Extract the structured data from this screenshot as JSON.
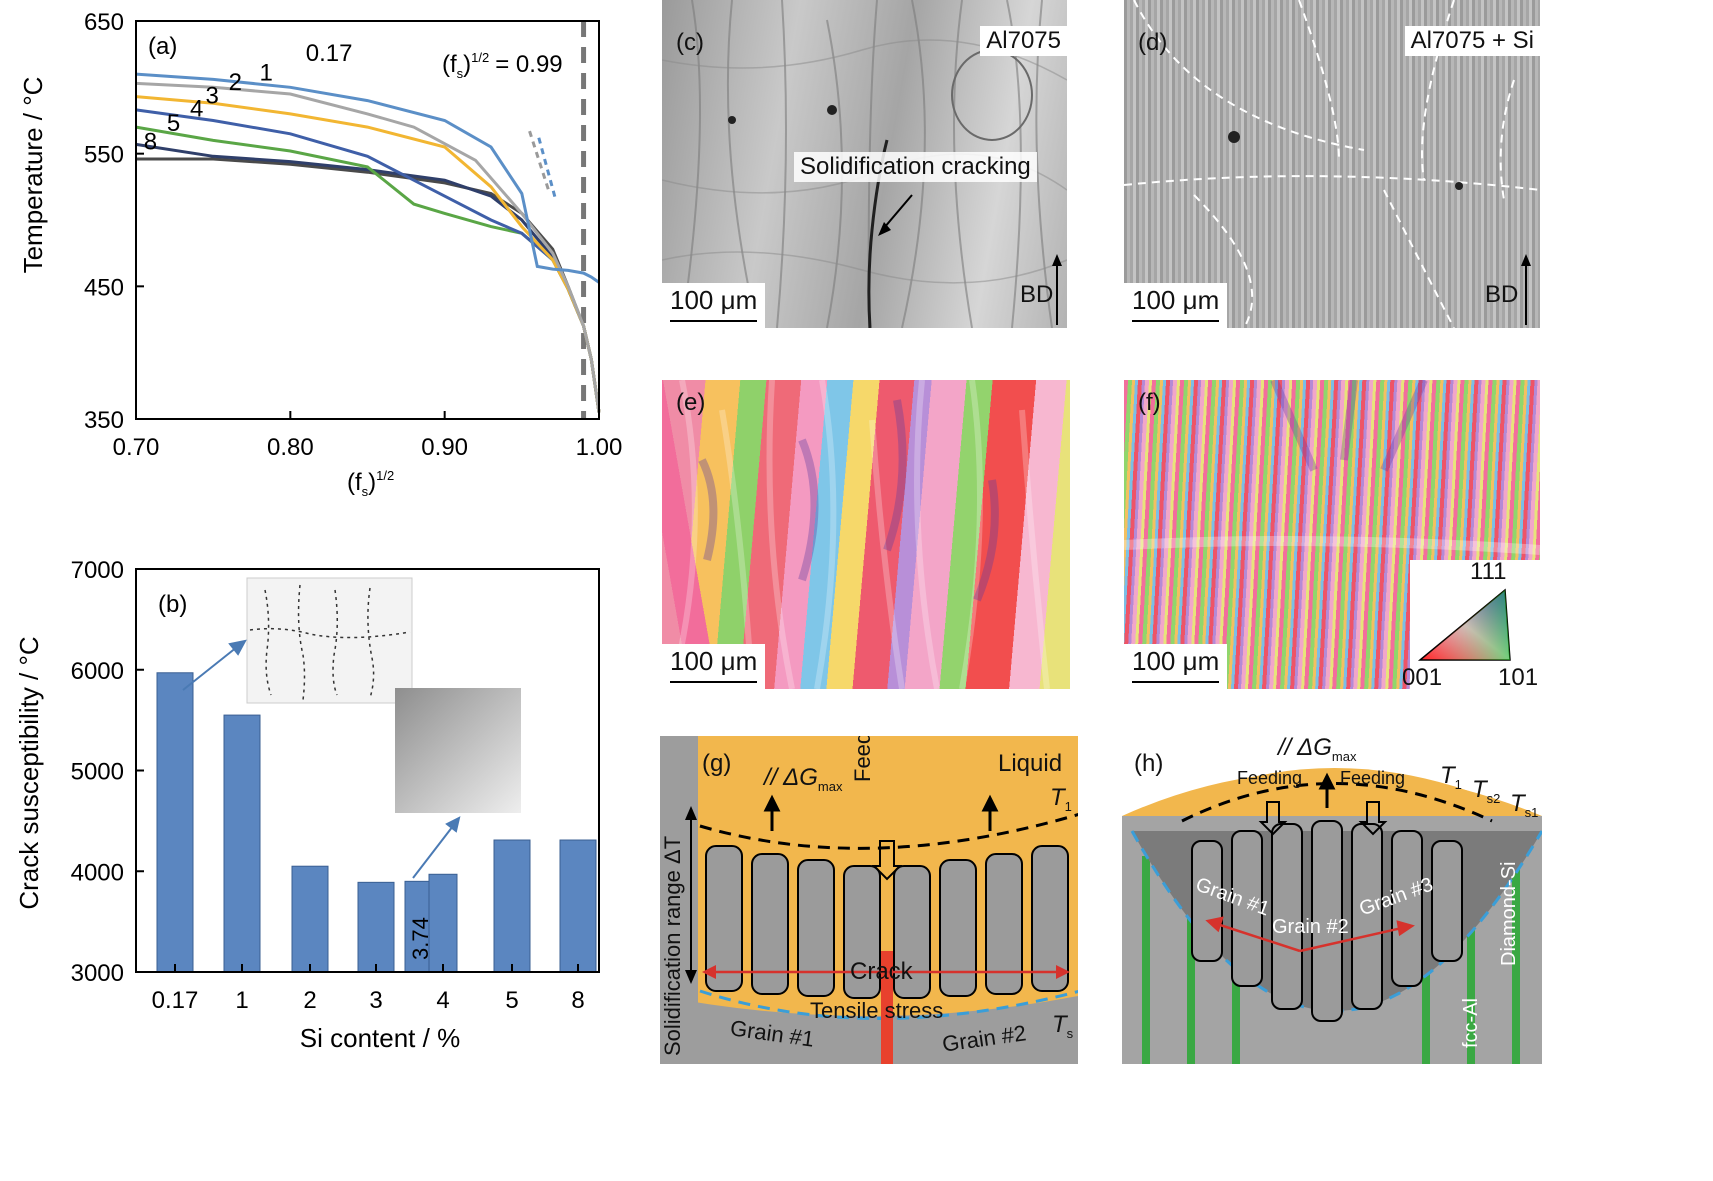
{
  "panel_a": {
    "label": "(a)",
    "ylabel": "Temperature / °C",
    "xlabel_main": "(f",
    "xlabel_sub": "s",
    "xlabel_sup": ")",
    "xlabel_exp": "1/2",
    "annotation_main": "(f",
    "annotation_sub": "s",
    "annotation_tail": ")",
    "annotation_exp": "1/2",
    "annotation_value": "= 0.99",
    "y_ticks": [
      "650",
      "550",
      "450",
      "350"
    ],
    "x_ticks": [
      "0.70",
      "0.80",
      "0.90",
      "1.00"
    ],
    "curve_labels": [
      "0.17",
      "1",
      "2",
      "3",
      "4",
      "5",
      "8"
    ]
  },
  "panel_b": {
    "label": "(b)",
    "ylabel": "Crack susceptibility / °C",
    "xlabel": "Si content / %",
    "y_ticks": [
      "7000",
      "6000",
      "5000",
      "4000",
      "3000"
    ],
    "bar_annotation": "3.74"
  },
  "panel_c": {
    "label": "(c)",
    "title": "Al7075",
    "annotation": "Solidification cracking",
    "scale": "100 μm",
    "bd": "BD"
  },
  "panel_d": {
    "label": "(d)",
    "title": "Al7075 + Si",
    "scale": "100 μm",
    "bd": "BD"
  },
  "panel_e": {
    "label": "(e)",
    "scale": "100 μm"
  },
  "panel_f": {
    "label": "(f)",
    "scale": "100 μm",
    "ipf_top": "111",
    "ipf_left": "001",
    "ipf_right": "101"
  },
  "panel_g": {
    "label": "(g)",
    "liquid": "Liquid",
    "feeding": "Feeding",
    "gmax": "// ΔG",
    "gmax_sub": "max",
    "t1": "T",
    "t1_sub": "1",
    "ts": "T",
    "ts_sub": "s",
    "range": "Solidification range ΔT",
    "crack": "Crack",
    "tensile": "Tensile stress",
    "grain1": "Grain #1",
    "grain2": "Grain #2"
  },
  "panel_h": {
    "label": "(h)",
    "gmax": "// ΔG",
    "gmax_sub": "max",
    "feeding_left": "Feeding",
    "feeding_right": "Feeding",
    "t1": "T",
    "t1_sub": "1",
    "ts2": "T",
    "ts2_sub": "s2",
    "ts1": "T",
    "ts1_sub": "s1",
    "grain1": "Grain #1",
    "grain2": "Grain #2",
    "grain3": "Grain #3",
    "fcc": "fcc-Al",
    "diamond": "Diamond-Si"
  },
  "chart_data": [
    {
      "type": "line",
      "panel": "(a)",
      "ylabel": "Temperature / °C",
      "xlabel": "(fs)^1/2",
      "xlim": [
        0.7,
        1.0
      ],
      "ylim": [
        350,
        650
      ],
      "x_ticks": [
        0.7,
        0.8,
        0.9,
        1.0
      ],
      "y_ticks": [
        350,
        450,
        550,
        650
      ],
      "reference_line_x": 0.99,
      "colors": {
        "0.17": "#5b8fc7",
        "1": "#a6a6a6",
        "2": "#f2b632",
        "3": "#3f5fa8",
        "4": "#5aa646",
        "5": "#2f3f6a",
        "8": "#4a4a4a"
      },
      "series": [
        {
          "name": "0.17",
          "x": [
            0.7,
            0.75,
            0.8,
            0.85,
            0.9,
            0.93,
            0.95,
            0.96,
            0.97,
            0.98,
            0.99,
            0.995,
            1.0
          ],
          "y": [
            610,
            606,
            600,
            590,
            575,
            555,
            520,
            465,
            463,
            462,
            460,
            457,
            453
          ]
        },
        {
          "name": "1",
          "x": [
            0.7,
            0.75,
            0.8,
            0.85,
            0.88,
            0.92,
            0.95,
            0.97,
            0.98,
            0.99,
            0.995,
            1.0
          ],
          "y": [
            603,
            600,
            595,
            580,
            570,
            545,
            505,
            475,
            450,
            420,
            395,
            355
          ]
        },
        {
          "name": "2",
          "x": [
            0.7,
            0.75,
            0.8,
            0.85,
            0.9,
            0.93,
            0.95,
            0.97,
            0.98,
            0.99,
            0.995,
            1.0
          ],
          "y": [
            593,
            588,
            580,
            570,
            555,
            525,
            495,
            470,
            448,
            420,
            395,
            355
          ]
        },
        {
          "name": "3",
          "x": [
            0.7,
            0.75,
            0.8,
            0.85,
            0.88,
            0.91,
            0.93,
            0.95,
            0.97,
            0.98,
            0.99,
            0.995,
            1.0
          ],
          "y": [
            583,
            575,
            565,
            548,
            530,
            512,
            500,
            490,
            470,
            448,
            420,
            395,
            355
          ]
        },
        {
          "name": "4",
          "x": [
            0.7,
            0.75,
            0.8,
            0.85,
            0.88,
            0.9,
            0.93,
            0.95,
            0.97,
            0.98,
            0.99,
            0.995,
            1.0
          ],
          "y": [
            570,
            560,
            552,
            540,
            512,
            505,
            495,
            490,
            470,
            448,
            420,
            395,
            355
          ]
        },
        {
          "name": "5",
          "x": [
            0.7,
            0.75,
            0.8,
            0.85,
            0.9,
            0.93,
            0.95,
            0.97,
            0.98,
            0.99,
            0.995,
            1.0
          ],
          "y": [
            557,
            548,
            544,
            538,
            530,
            518,
            500,
            472,
            448,
            420,
            395,
            355
          ]
        },
        {
          "name": "8",
          "x": [
            0.7,
            0.75,
            0.8,
            0.85,
            0.9,
            0.93,
            0.95,
            0.97,
            0.98,
            0.99,
            0.995,
            1.0
          ],
          "y": [
            546,
            546,
            542,
            536,
            528,
            520,
            505,
            478,
            450,
            420,
            395,
            355
          ]
        }
      ]
    },
    {
      "type": "bar",
      "panel": "(b)",
      "ylabel": "Crack susceptibility / °C",
      "xlabel": "Si content / %",
      "ylim": [
        3000,
        7000
      ],
      "y_ticks": [
        3000,
        4000,
        5000,
        6000,
        7000
      ],
      "bar_color": "#5b86c0",
      "categories": [
        "0.17",
        "1",
        "2",
        "3",
        "3.74",
        "4",
        "5",
        "8"
      ],
      "values": [
        5970,
        5550,
        4050,
        3890,
        3900,
        3970,
        4310,
        4310
      ],
      "x_tick_labels": [
        "0.17",
        "1",
        "2",
        "3",
        "4",
        "5",
        "8"
      ]
    }
  ]
}
